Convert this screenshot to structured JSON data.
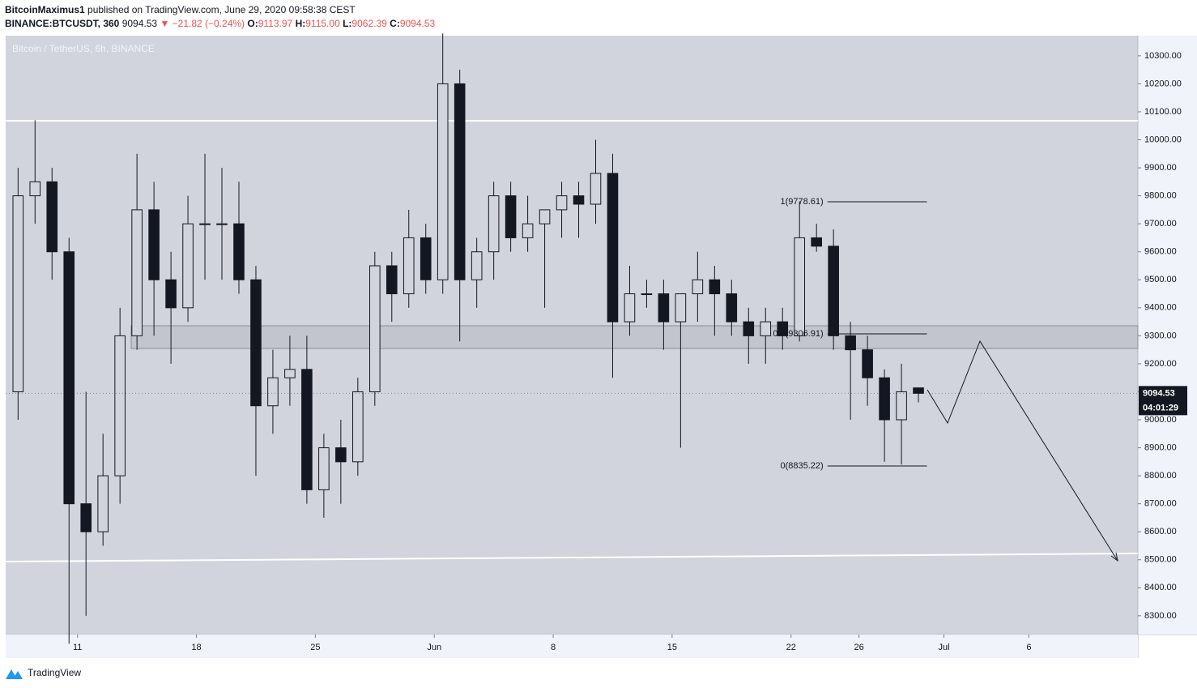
{
  "header": {
    "author": "BitcoinMaximus1",
    "published": "published on TradingView.com, June 29, 2020 09:58:38 CEST",
    "symbol": "BINANCE:BTCUSDT, 360",
    "last": "9094.53",
    "change": "▼ −21.82 (−0.24%)",
    "o_label": "O:",
    "o": "9113.97",
    "h_label": "H:",
    "h": "9115.00",
    "l_label": "L:",
    "l": "9062.39",
    "c_label": "C:",
    "c": "9094.53"
  },
  "footer": {
    "brand": "TradingView"
  },
  "chart_data": {
    "type": "candlestick",
    "title": "Bitcoin / TetherUS, 6h, BINANCE",
    "up_color": "#d1d4dc",
    "down_color": "#131722",
    "outline_color": "#131722",
    "xlim": [
      "2020-05-06T18:30",
      "2020-07-12T10:00"
    ],
    "xticks": [
      {
        "value": "2020-05-11",
        "label": "11"
      },
      {
        "value": "2020-05-18",
        "label": "18"
      },
      {
        "value": "2020-05-25",
        "label": "25"
      },
      {
        "value": "2020-06-01",
        "label": "Jun"
      },
      {
        "value": "2020-06-08",
        "label": "8"
      },
      {
        "value": "2020-06-15",
        "label": "15"
      },
      {
        "value": "2020-06-22",
        "label": "22"
      },
      {
        "value": "2020-06-26",
        "label": "26"
      },
      {
        "value": "2020-07-01",
        "label": "Jul"
      },
      {
        "value": "2020-07-06",
        "label": "6"
      }
    ],
    "ylim": [
      8233,
      10372
    ],
    "yticks": [
      {
        "value": 8300,
        "label": "8300.00"
      },
      {
        "value": 8400,
        "label": "8400.00"
      },
      {
        "value": 8500,
        "label": "8500.00"
      },
      {
        "value": 8600,
        "label": "8600.00"
      },
      {
        "value": 8700,
        "label": "8700.00"
      },
      {
        "value": 8800,
        "label": "8800.00"
      },
      {
        "value": 8900,
        "label": "8900.00"
      },
      {
        "value": 9000,
        "label": "9000.00"
      },
      {
        "value": 9100,
        "label": "9100.00"
      },
      {
        "value": 9200,
        "label": "9200.00"
      },
      {
        "value": 9300,
        "label": "9300.00"
      },
      {
        "value": 9400,
        "label": "9400.00"
      },
      {
        "value": 9500,
        "label": "9500.00"
      },
      {
        "value": 9600,
        "label": "9600.00"
      },
      {
        "value": 9700,
        "label": "9700.00"
      },
      {
        "value": 9800,
        "label": "9800.00"
      },
      {
        "value": 9900,
        "label": "9900.00"
      },
      {
        "value": 10000,
        "label": "10000.00"
      },
      {
        "value": 10100,
        "label": "10100.00"
      },
      {
        "value": 10200,
        "label": "10200.00"
      },
      {
        "value": 10300,
        "label": "10300.00"
      }
    ],
    "x": [
      "2020-05-07",
      "2020-05-08",
      "2020-05-09",
      "2020-05-10",
      "2020-05-11",
      "2020-05-12",
      "2020-05-13",
      "2020-05-14",
      "2020-05-15",
      "2020-05-16",
      "2020-05-17",
      "2020-05-18",
      "2020-05-19",
      "2020-05-20",
      "2020-05-21",
      "2020-05-22",
      "2020-05-23",
      "2020-05-24",
      "2020-05-25",
      "2020-05-26",
      "2020-05-27",
      "2020-05-28",
      "2020-05-29",
      "2020-05-30",
      "2020-05-31",
      "2020-06-01",
      "2020-06-02",
      "2020-06-03",
      "2020-06-04",
      "2020-06-05",
      "2020-06-06",
      "2020-06-07",
      "2020-06-08",
      "2020-06-09",
      "2020-06-10",
      "2020-06-11",
      "2020-06-12",
      "2020-06-13",
      "2020-06-14",
      "2020-06-15",
      "2020-06-16",
      "2020-06-17",
      "2020-06-18",
      "2020-06-19",
      "2020-06-20",
      "2020-06-21",
      "2020-06-22",
      "2020-06-23",
      "2020-06-24",
      "2020-06-25",
      "2020-06-26",
      "2020-06-27",
      "2020-06-28",
      "2020-06-29"
    ],
    "open": [
      9100,
      9800,
      9850,
      9600,
      8700,
      8600,
      8800,
      9300,
      9750,
      9500,
      9400,
      9700,
      9700,
      9700,
      9500,
      9050,
      9150,
      9180,
      8750,
      8900,
      8850,
      9100,
      9550,
      9450,
      9650,
      9500,
      10200,
      9500,
      9600,
      9800,
      9650,
      9700,
      9750,
      9800,
      9770,
      9880,
      9350,
      9450,
      9450,
      9350,
      9450,
      9500,
      9450,
      9350,
      9300,
      9350,
      9300,
      9650,
      9620,
      9300,
      9250,
      9150,
      9000,
      9113.97
    ],
    "high": [
      9900,
      10070,
      9900,
      9650,
      9100,
      8950,
      9400,
      9950,
      9850,
      9600,
      9800,
      9950,
      9900,
      9850,
      9550,
      9250,
      9300,
      9300,
      8950,
      9000,
      9150,
      9600,
      9600,
      9750,
      9700,
      10380,
      10250,
      9650,
      9850,
      9850,
      9800,
      9750,
      9850,
      9850,
      10000,
      9950,
      9550,
      9500,
      9500,
      9450,
      9600,
      9550,
      9500,
      9400,
      9400,
      9400,
      9780,
      9700,
      9680,
      9350,
      9300,
      9180,
      9200,
      9115
    ],
    "low": [
      9000,
      9700,
      9500,
      8200,
      8300,
      8550,
      8700,
      9250,
      9300,
      9200,
      9350,
      9500,
      9500,
      9450,
      8800,
      8950,
      9050,
      8700,
      8650,
      8700,
      8800,
      9050,
      9350,
      9400,
      9450,
      9450,
      9280,
      9400,
      9500,
      9600,
      9600,
      9400,
      9650,
      9650,
      9700,
      9150,
      9300,
      9400,
      9250,
      8900,
      9350,
      9300,
      9300,
      9200,
      9200,
      9250,
      9280,
      9600,
      9250,
      9000,
      9050,
      8850,
      8840,
      9062.39
    ],
    "close": [
      9800,
      9850,
      9600,
      8700,
      8600,
      8800,
      9300,
      9750,
      9500,
      9400,
      9700,
      9700,
      9700,
      9500,
      9050,
      9150,
      9180,
      8750,
      8900,
      8850,
      9100,
      9550,
      9450,
      9650,
      9500,
      10200,
      9500,
      9600,
      9800,
      9650,
      9700,
      9750,
      9800,
      9770,
      9880,
      9350,
      9450,
      9450,
      9350,
      9450,
      9500,
      9450,
      9350,
      9300,
      9350,
      9300,
      9650,
      9620,
      9300,
      9250,
      9150,
      9000,
      9100,
      9094.53
    ],
    "fib": [
      {
        "label": "1(9778.61)",
        "value": 9778.61
      },
      {
        "label": "0.5(9306.91)",
        "value": 9306.91
      },
      {
        "label": "0(8835.22)",
        "value": 8835.22
      }
    ],
    "last_price": {
      "value": 9094.53,
      "label": "9094.53",
      "countdown": "04:01:29"
    }
  }
}
